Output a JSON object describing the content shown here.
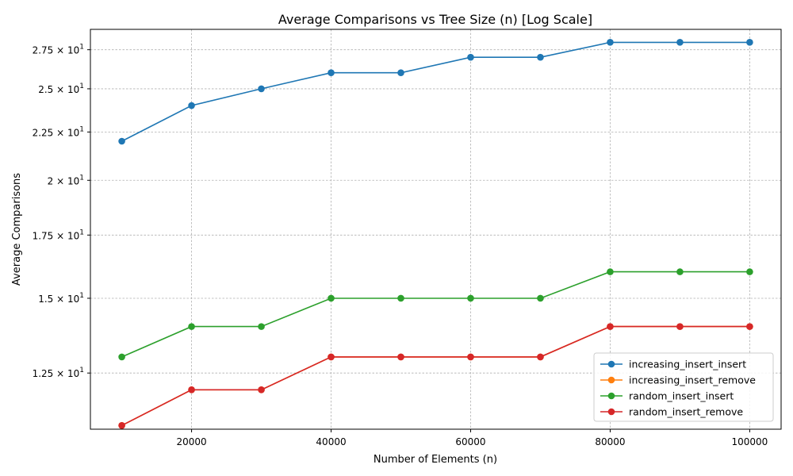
{
  "chart_data": {
    "type": "line",
    "title": "Average Comparisons vs Tree Size (n) [Log Scale]",
    "xlabel": "Number of Elements (n)",
    "ylabel": "Average Comparisons",
    "yscale": "log",
    "xlim": [
      5500,
      104500
    ],
    "ylim": [
      10.9,
      28.9
    ],
    "x_ticks": [
      20000,
      40000,
      60000,
      80000,
      100000
    ],
    "x_tick_labels": [
      "20000",
      "40000",
      "60000",
      "80000",
      "100000"
    ],
    "y_ticks": [
      12.5,
      15,
      17.5,
      20,
      22.5,
      25,
      27.5
    ],
    "y_tick_labels": [
      {
        "mantissa": "1.25",
        "exp": "1"
      },
      {
        "mantissa": "1.5",
        "exp": "1"
      },
      {
        "mantissa": "1.75",
        "exp": "1"
      },
      {
        "mantissa": "2",
        "exp": "1"
      },
      {
        "mantissa": "2.25",
        "exp": "1"
      },
      {
        "mantissa": "2.5",
        "exp": "1"
      },
      {
        "mantissa": "2.75",
        "exp": "1"
      }
    ],
    "grid": true,
    "legend_position": "bottom-right",
    "x": [
      10000,
      20000,
      30000,
      40000,
      50000,
      60000,
      70000,
      80000,
      90000,
      100000
    ],
    "series": [
      {
        "name": "increasing_insert_insert",
        "color": "#1f77b4",
        "values": [
          22,
          24,
          25,
          26,
          26,
          27,
          27,
          28,
          28,
          28
        ]
      },
      {
        "name": "increasing_insert_remove",
        "color": "#ff7f0e",
        "values": [
          11,
          12,
          12,
          13,
          13,
          13,
          13,
          14,
          14,
          14
        ]
      },
      {
        "name": "random_insert_insert",
        "color": "#2ca02c",
        "values": [
          13,
          14,
          14,
          15,
          15,
          15,
          15,
          16,
          16,
          16
        ]
      },
      {
        "name": "random_insert_remove",
        "color": "#d62728",
        "values": [
          11,
          12,
          12,
          13,
          13,
          13,
          13,
          14,
          14,
          14
        ]
      }
    ]
  }
}
